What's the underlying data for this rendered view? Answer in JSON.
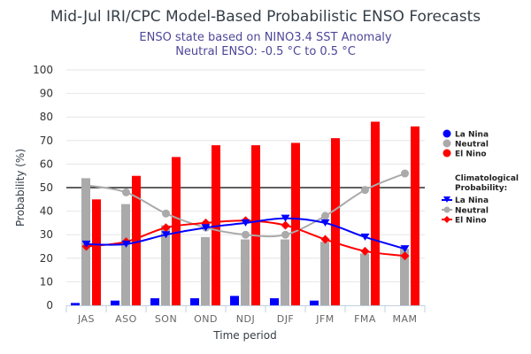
{
  "chart_data": {
    "type": "bar",
    "title": "Mid-Jul IRI/CPC Model-Based Probabilistic ENSO Forecasts",
    "subtitle_line1": "ENSO state based on NINO3.4 SST Anomaly",
    "subtitle_line2": "Neutral ENSO: -0.5 °C to 0.5 °C",
    "xlabel": "Time period",
    "ylabel": "Probability (%)",
    "ylim": [
      0,
      100
    ],
    "yticks": [
      0,
      10,
      20,
      30,
      40,
      50,
      60,
      70,
      80,
      90,
      100
    ],
    "reference_line": 50,
    "grid": true,
    "legend_position": "right",
    "categories": [
      "JAS",
      "ASO",
      "SON",
      "OND",
      "NDJ",
      "DJF",
      "JFM",
      "FMA",
      "MAM"
    ],
    "series": [
      {
        "name": "La Nina",
        "kind": "bar",
        "color": "#0000ff",
        "values": [
          1,
          2,
          3,
          3,
          4,
          3,
          2,
          0,
          0
        ]
      },
      {
        "name": "Neutral",
        "kind": "bar",
        "color": "#aaaaaa",
        "values": [
          54,
          43,
          34,
          29,
          28,
          28,
          27,
          22,
          24
        ]
      },
      {
        "name": "El Nino",
        "kind": "bar",
        "color": "#ff0000",
        "values": [
          45,
          55,
          63,
          68,
          68,
          69,
          71,
          78,
          76
        ]
      }
    ],
    "climatology_title": "Climatological Probability:",
    "climatology": [
      {
        "name": "La Nina",
        "kind": "line",
        "marker": "triangle-down",
        "color": "#0000ff",
        "values": [
          26,
          26,
          30,
          33,
          35,
          37,
          35,
          29,
          24
        ]
      },
      {
        "name": "Neutral",
        "kind": "line",
        "marker": "circle",
        "color": "#aaaaaa",
        "values": [
          51,
          48,
          39,
          33,
          30,
          30,
          38,
          49,
          56
        ]
      },
      {
        "name": "El Nino",
        "kind": "line",
        "marker": "diamond",
        "color": "#ff0000",
        "values": [
          25,
          27,
          33,
          35,
          36,
          34,
          28,
          23,
          21
        ]
      }
    ]
  }
}
